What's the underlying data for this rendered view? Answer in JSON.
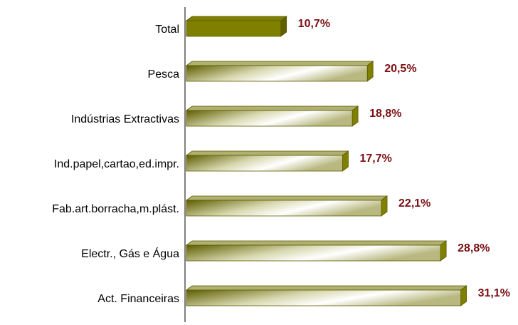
{
  "chart_data": {
    "type": "hbar",
    "categories": [
      "Total",
      "Pesca",
      "Indústrias Extractivas",
      "Ind.papel,cartao,ed.impr.",
      "Fab.art.borracha,m.plást.",
      "Electr., Gás e Água",
      "Act. Financeiras"
    ],
    "values": [
      10.7,
      20.5,
      18.8,
      17.7,
      22.1,
      28.8,
      31.1
    ],
    "value_labels": [
      "10,7%",
      "20,5%",
      "18,8%",
      "17,7%",
      "22,1%",
      "28,8%",
      "31,1%"
    ],
    "color": "#808000",
    "label_color": "#7a0f12",
    "solid_index": 0
  }
}
